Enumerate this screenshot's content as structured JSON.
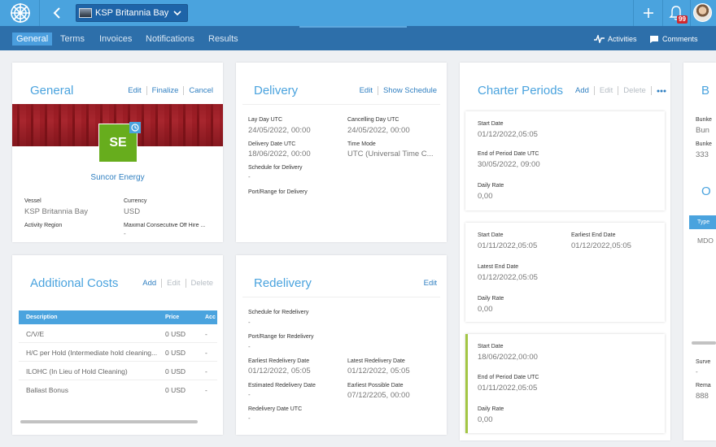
{
  "topbar": {
    "logo_icon": "ship-wheel-icon",
    "back_icon": "chevron-left-icon",
    "vessel_name": "KSP Britannia Bay",
    "notification_count": "99"
  },
  "nav": {
    "tabs": [
      {
        "label": "General",
        "active": true
      },
      {
        "label": "Terms"
      },
      {
        "label": "Invoices"
      },
      {
        "label": "Notifications"
      },
      {
        "label": "Results"
      }
    ],
    "activities_label": "Activities",
    "comments_label": "Comments"
  },
  "general": {
    "title": "General",
    "actions": [
      "Edit",
      "Finalize",
      "Cancel"
    ],
    "company_initials": "SE",
    "company_name": "Suncor Energy",
    "fields": {
      "vessel_label": "Vessel",
      "vessel_value": "KSP Britannia Bay",
      "currency_label": "Currency",
      "currency_value": "USD",
      "activity_region_label": "Activity Region",
      "max_off_hire_label": "Maximal Consecutive Off Hire ...",
      "max_off_hire_value": "-"
    }
  },
  "additional_costs": {
    "title": "Additional Costs",
    "actions": [
      "Add",
      "Edit",
      "Delete"
    ],
    "columns": [
      "Description",
      "Price",
      "Acc"
    ],
    "rows": [
      {
        "description": "C/V/E",
        "price": "0 USD",
        "acc": "-"
      },
      {
        "description": "H/C per Hold (Intermediate hold cleaning...",
        "price": "0 USD",
        "acc": "-"
      },
      {
        "description": "ILOHC (In Lieu of Hold Cleaning)",
        "price": "0 USD",
        "acc": "-"
      },
      {
        "description": "Ballast Bonus",
        "price": "0 USD",
        "acc": "-"
      }
    ]
  },
  "delivery": {
    "title": "Delivery",
    "actions": [
      "Edit",
      "Show Schedule"
    ],
    "lay_day_label": "Lay Day UTC",
    "lay_day_value": "24/05/2022, 00:00",
    "cancelling_label": "Cancelling Day UTC",
    "cancelling_value": "24/05/2022, 00:00",
    "delivery_date_label": "Delivery Date UTC",
    "delivery_date_value": "18/06/2022, 00:00",
    "time_mode_label": "Time Mode",
    "time_mode_value": "UTC (Universal Time C...",
    "schedule_label": "Schedule for Delivery",
    "schedule_value": "-",
    "port_label": "Port/Range for Delivery"
  },
  "redelivery": {
    "title": "Redelivery",
    "actions": [
      "Edit"
    ],
    "schedule_label": "Schedule for Redelivery",
    "schedule_value": "-",
    "port_label": "Port/Range for Redelivery",
    "port_value": "-",
    "earliest_label": "Earliest Redelivery Date",
    "earliest_value": "01/12/2022, 05:05",
    "latest_label": "Latest Redelivery Date",
    "latest_value": "01/12/2022, 05:05",
    "estimated_label": "Estimated Redelivery Date",
    "estimated_value": "-",
    "earliest_possible_label": "Earliest Possible Date",
    "earliest_possible_value": "07/12/2205, 00:00",
    "redelivery_utc_label": "Redelivery Date UTC",
    "redelivery_utc_value": "-"
  },
  "charter_periods": {
    "title": "Charter Periods",
    "actions": [
      "Add",
      "Edit",
      "Delete"
    ],
    "more_icon": "more-horizontal-icon",
    "periods": [
      {
        "start_label": "Start Date",
        "start_value": "01/12/2022,05:05",
        "end_label": "End of Period Date UTC",
        "end_value": "30/05/2022, 09:00",
        "rate_label": "Daily Rate",
        "rate_value": "0,00"
      },
      {
        "start_label": "Start Date",
        "start_value": "01/11/2022,05:05",
        "earliest_end_label": "Earliest End Date",
        "earliest_end_value": "01/12/2022,05:05",
        "latest_end_label": "Latest End Date",
        "latest_end_value": "01/12/2022,05:05",
        "rate_label": "Daily Rate",
        "rate_value": "0,00"
      },
      {
        "start_label": "Start Date",
        "start_value": "18/06/2022,00:00",
        "end_label": "End of Period Date UTC",
        "end_value": "01/11/2022,05:05",
        "rate_label": "Daily Rate",
        "rate_value": "0,00"
      }
    ]
  },
  "side_panel": {
    "title": "B",
    "bunker1_label": "Bunke",
    "bunker1_value": "Bun",
    "bunker2_label": "Bunke",
    "bunker2_value": "333",
    "section_title": "O",
    "col_header": "Type",
    "row_value": "MDO",
    "survey_label": "Surve",
    "survey_value": "-",
    "remarks_label": "Rema",
    "remarks_value": "888"
  }
}
